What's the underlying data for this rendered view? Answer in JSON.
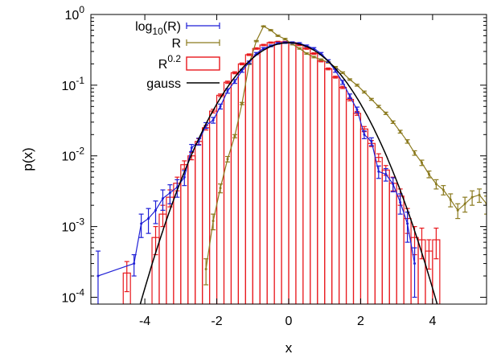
{
  "chart_data": {
    "type": "line",
    "xlabel": "x",
    "ylabel": "p(x)",
    "xlim": [
      -5.5,
      5.5
    ],
    "ylim": [
      8e-05,
      1
    ],
    "yscale": "log",
    "x_ticks": [
      -4,
      -2,
      0,
      2,
      4
    ],
    "x_tick_labels": [
      "-4",
      "-2",
      "0",
      "2",
      "4"
    ],
    "y_ticks": [
      {
        "value": 1,
        "base": "10",
        "exp": "0"
      },
      {
        "value": 0.1,
        "base": "10",
        "exp": "-1"
      },
      {
        "value": 0.01,
        "base": "10",
        "exp": "-2"
      },
      {
        "value": 0.001,
        "base": "10",
        "exp": "-3"
      },
      {
        "value": 0.0001,
        "base": "10",
        "exp": "-4"
      }
    ],
    "grid": false,
    "legend_position": "top-left",
    "legend": [
      {
        "key": "log10R",
        "label_main": "log",
        "label_sub": "10",
        "label_tail": "(R)",
        "style": "errorline",
        "color": "#1f1fd6"
      },
      {
        "key": "R",
        "label_main": "R",
        "style": "errorline",
        "color": "#8b7a1e"
      },
      {
        "key": "R02",
        "label_main": "R",
        "label_sup": "0.2",
        "style": "box",
        "color": "#e8181d"
      },
      {
        "key": "gauss",
        "label_main": "gauss",
        "style": "line",
        "color": "#000000"
      }
    ],
    "series": [
      {
        "key": "log10R",
        "name": "log10(R)",
        "color": "#1f1fd6",
        "x": [
          -5.3,
          -4.3,
          -4.1,
          -3.9,
          -3.7,
          -3.5,
          -3.3,
          -3.1,
          -2.9,
          -2.7,
          -2.5,
          -2.3,
          -2.1,
          -1.9,
          -1.7,
          -1.5,
          -1.3,
          -1.1,
          -0.9,
          -0.7,
          -0.5,
          -0.3,
          -0.1,
          0.1,
          0.3,
          0.5,
          0.7,
          0.9,
          1.1,
          1.3,
          1.5,
          1.7,
          1.9,
          2.1,
          2.3,
          2.5,
          2.7,
          2.9,
          3.1,
          3.3,
          3.5
        ],
        "y": [
          0.0002,
          0.0003,
          0.0011,
          0.0013,
          0.0017,
          0.0025,
          0.003,
          0.0036,
          0.005,
          0.013,
          0.016,
          0.027,
          0.032,
          0.05,
          0.083,
          0.113,
          0.16,
          0.21,
          0.28,
          0.33,
          0.36,
          0.39,
          0.4,
          0.4,
          0.39,
          0.36,
          0.33,
          0.28,
          0.22,
          0.16,
          0.11,
          0.07,
          0.045,
          0.02,
          0.016,
          0.006,
          0.0055,
          0.004,
          0.0022,
          0.0011,
          0.0003
        ],
        "err": [
          0.00025,
          0.0001,
          0.0004,
          0.0005,
          0.0006,
          0.0008,
          0.0009,
          0.001,
          0.0012,
          0.0015,
          0.0018,
          0.0025,
          0.003,
          0.004,
          0.006,
          0.007,
          0.008,
          0.009,
          0.01,
          0.01,
          0.01,
          0.01,
          0.01,
          0.01,
          0.01,
          0.01,
          0.01,
          0.01,
          0.009,
          0.008,
          0.007,
          0.005,
          0.004,
          0.0025,
          0.002,
          0.0012,
          0.0011,
          0.0009,
          0.0007,
          0.0005,
          0.0002
        ]
      },
      {
        "key": "R",
        "name": "R",
        "color": "#8b7a1e",
        "x": [
          -2.3,
          -2.1,
          -1.9,
          -1.7,
          -1.5,
          -1.3,
          -1.1,
          -0.9,
          -0.7,
          -0.5,
          -0.3,
          -0.1,
          0.1,
          0.3,
          0.5,
          0.7,
          0.9,
          1.1,
          1.3,
          1.5,
          1.7,
          1.9,
          2.1,
          2.3,
          2.5,
          2.7,
          2.9,
          3.1,
          3.3,
          3.5,
          3.7,
          3.9,
          4.1,
          4.3,
          4.5,
          4.7,
          4.9,
          5.1,
          5.3,
          5.5
        ],
        "y": [
          0.00025,
          0.0012,
          0.0035,
          0.009,
          0.019,
          0.055,
          0.2,
          0.42,
          0.68,
          0.6,
          0.5,
          0.45,
          0.38,
          0.33,
          0.28,
          0.25,
          0.23,
          0.21,
          0.18,
          0.15,
          0.12,
          0.1,
          0.08,
          0.063,
          0.05,
          0.04,
          0.03,
          0.022,
          0.016,
          0.011,
          0.008,
          0.0055,
          0.004,
          0.0033,
          0.0024,
          0.0017,
          0.0021,
          0.0026,
          0.0028,
          0.0021
        ],
        "err": [
          0.0001,
          0.0003,
          0.0005,
          0.0008,
          0.001,
          0.002,
          0.005,
          0.008,
          0.01,
          0.01,
          0.01,
          0.01,
          0.008,
          0.007,
          0.006,
          0.006,
          0.005,
          0.005,
          0.004,
          0.004,
          0.003,
          0.003,
          0.0025,
          0.002,
          0.0018,
          0.0015,
          0.0012,
          0.001,
          0.0009,
          0.0008,
          0.0007,
          0.0006,
          0.0006,
          0.0005,
          0.0005,
          0.0004,
          0.0005,
          0.0006,
          0.0006,
          0.0006
        ]
      },
      {
        "key": "R02",
        "name": "R^0.2",
        "color": "#e8181d",
        "binwidth": 0.2,
        "x": [
          -4.5,
          -4.3,
          -4.1,
          -3.9,
          -3.7,
          -3.5,
          -3.3,
          -3.1,
          -2.9,
          -2.7,
          -2.5,
          -2.3,
          -2.1,
          -1.9,
          -1.7,
          -1.5,
          -1.3,
          -1.1,
          -0.9,
          -0.7,
          -0.5,
          -0.3,
          -0.1,
          0.1,
          0.3,
          0.5,
          0.7,
          0.9,
          1.1,
          1.3,
          1.5,
          1.7,
          1.9,
          2.1,
          2.3,
          2.5,
          2.7,
          2.9,
          3.1,
          3.3,
          3.5,
          3.7,
          3.9,
          4.1
        ],
        "y": [
          0.00022,
          3e-05,
          3e-05,
          1e-05,
          0.0007,
          0.0015,
          0.0026,
          0.0041,
          0.0075,
          0.01,
          0.016,
          0.025,
          0.043,
          0.072,
          0.11,
          0.15,
          0.2,
          0.27,
          0.33,
          0.37,
          0.4,
          0.41,
          0.41,
          0.4,
          0.37,
          0.33,
          0.28,
          0.22,
          0.17,
          0.13,
          0.093,
          0.063,
          0.04,
          0.024,
          0.015,
          0.0095,
          0.0063,
          0.0041,
          0.0027,
          0.0013,
          0.0007,
          0.00065,
          0.00045,
          0.00065
        ],
        "err": [
          0.0001,
          1e-05,
          1e-05,
          1e-05,
          0.0003,
          0.0005,
          0.0007,
          0.0009,
          0.001,
          0.0012,
          0.0015,
          0.0018,
          0.0025,
          0.003,
          0.004,
          0.005,
          0.006,
          0.007,
          0.008,
          0.008,
          0.008,
          0.008,
          0.008,
          0.008,
          0.008,
          0.008,
          0.007,
          0.006,
          0.005,
          0.004,
          0.0035,
          0.003,
          0.0025,
          0.002,
          0.0015,
          0.0012,
          0.001,
          0.0009,
          0.0007,
          0.0005,
          0.0003,
          0.0003,
          0.0002,
          0.0003
        ]
      },
      {
        "key": "gauss",
        "name": "gauss",
        "color": "#000000",
        "function": "normal",
        "mean": 0,
        "sigma": 1,
        "x_range": [
          -4.6,
          4.6
        ]
      }
    ]
  }
}
